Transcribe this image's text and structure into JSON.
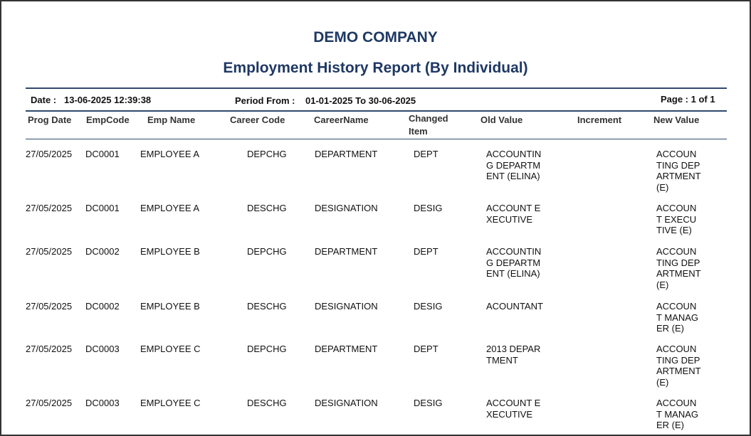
{
  "header": {
    "company": "DEMO COMPANY",
    "title": "Employment History Report (By Individual)",
    "date_label": "Date :",
    "date": "13-06-2025 12:39:38",
    "period_label": "Period From :",
    "period": "01-01-2025 To 30-06-2025",
    "page": "Page : 1 of 1"
  },
  "table": {
    "columns": [
      "Prog Date",
      "EmpCode",
      "Emp Name",
      "Career Code",
      "CareerName",
      "Changed Item",
      "Old Value",
      "Increment",
      "New Value"
    ],
    "rows": [
      {
        "prog_date": "27/05/2025",
        "emp_code": "DC0001",
        "emp_name": "EMPLOYEE A",
        "career_code": "DEPCHG",
        "career_name": "DEPARTMENT",
        "changed_item": "DEPT",
        "old_value": "ACCOUNTING DEPARTMENT (ELINA)",
        "new_value": "ACCOUNTING DEPARTMENT (E)"
      },
      {
        "prog_date": "27/05/2025",
        "emp_code": "DC0001",
        "emp_name": "EMPLOYEE A",
        "career_code": "DESCHG",
        "career_name": "DESIGNATION",
        "changed_item": "DESIG",
        "old_value": "ACCOUNT EXECUTIVE",
        "new_value": "ACCOUNT EXECUTIVE (E)"
      },
      {
        "prog_date": "27/05/2025",
        "emp_code": "DC0002",
        "emp_name": "EMPLOYEE B",
        "career_code": "DEPCHG",
        "career_name": "DEPARTMENT",
        "changed_item": "DEPT",
        "old_value": "ACCOUNTING DEPARTMENT (ELINA)",
        "new_value": "ACCOUNTING DEPARTMENT (E)"
      },
      {
        "prog_date": "27/05/2025",
        "emp_code": "DC0002",
        "emp_name": "EMPLOYEE B",
        "career_code": "DESCHG",
        "career_name": "DESIGNATION",
        "changed_item": "DESIG",
        "old_value": "ACOUNTANT",
        "new_value": "ACCOUNT MANAGER (E)"
      },
      {
        "prog_date": "27/05/2025",
        "emp_code": "DC0003",
        "emp_name": "EMPLOYEE C",
        "career_code": "DEPCHG",
        "career_name": "DEPARTMENT",
        "changed_item": "DEPT",
        "old_value": "2013 DEPARTMENT",
        "new_value": "ACCOUNTING DEPARTMENT (E)"
      },
      {
        "prog_date": "27/05/2025",
        "emp_code": "DC0003",
        "emp_name": "EMPLOYEE C",
        "career_code": "DESCHG",
        "career_name": "DESIGNATION",
        "changed_item": "DESIG",
        "old_value": "ACCOUNT EXECUTIVE",
        "new_value": "ACCOUNT MANAGER (E)"
      }
    ]
  }
}
